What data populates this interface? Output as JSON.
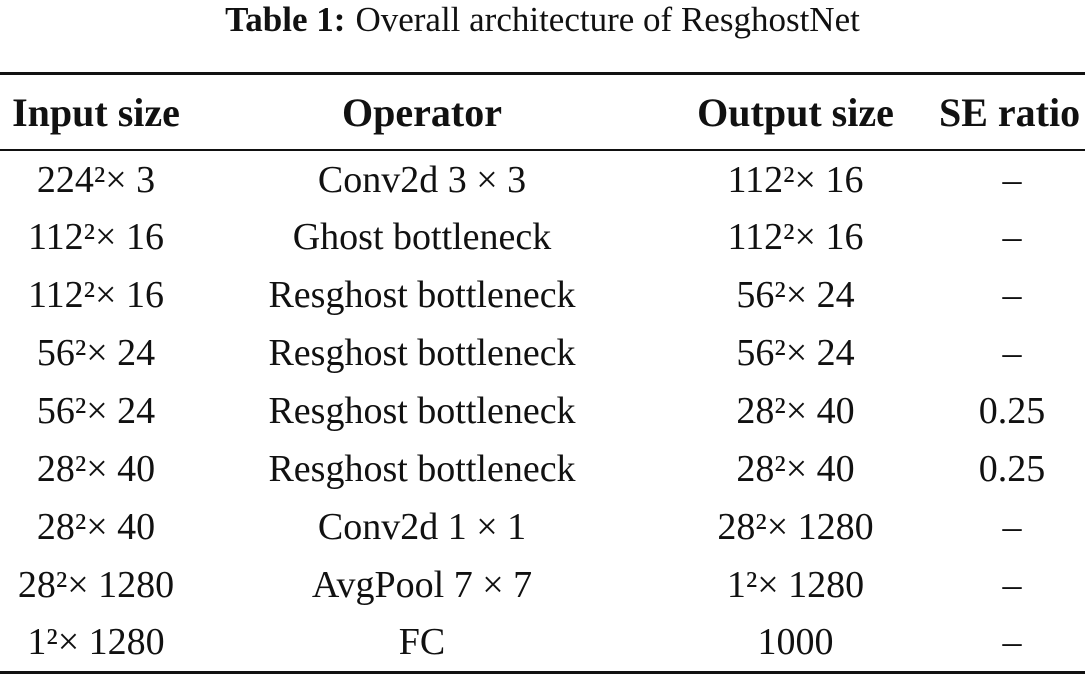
{
  "caption": {
    "label": "Table 1:",
    "text": "Overall architecture of ResghostNet"
  },
  "table": {
    "headers": {
      "input_size": "Input size",
      "operator": "Operator",
      "output_size": "Output size",
      "se_ratio": "SE ratio"
    },
    "rows": [
      {
        "input": "224²× 3",
        "operator": "Conv2d 3 × 3",
        "output": "112²× 16",
        "se": "–"
      },
      {
        "input": "112²× 16",
        "operator": "Ghost bottleneck",
        "output": "112²× 16",
        "se": "–"
      },
      {
        "input": "112²× 16",
        "operator": "Resghost bottleneck",
        "output": "56²× 24",
        "se": "–"
      },
      {
        "input": "56²× 24",
        "operator": "Resghost bottleneck",
        "output": "56²× 24",
        "se": "–"
      },
      {
        "input": "56²× 24",
        "operator": "Resghost bottleneck",
        "output": "28²× 40",
        "se": "0.25"
      },
      {
        "input": "28²× 40",
        "operator": "Resghost bottleneck",
        "output": "28²× 40",
        "se": "0.25"
      },
      {
        "input": "28²× 40",
        "operator": "Conv2d 1 × 1",
        "output": "28²× 1280",
        "se": "–"
      },
      {
        "input": "28²× 1280",
        "operator": "AvgPool 7 × 7",
        "output": "1²× 1280",
        "se": "–"
      },
      {
        "input": "1²× 1280",
        "operator": "FC",
        "output": "1000",
        "se": "–"
      }
    ]
  }
}
